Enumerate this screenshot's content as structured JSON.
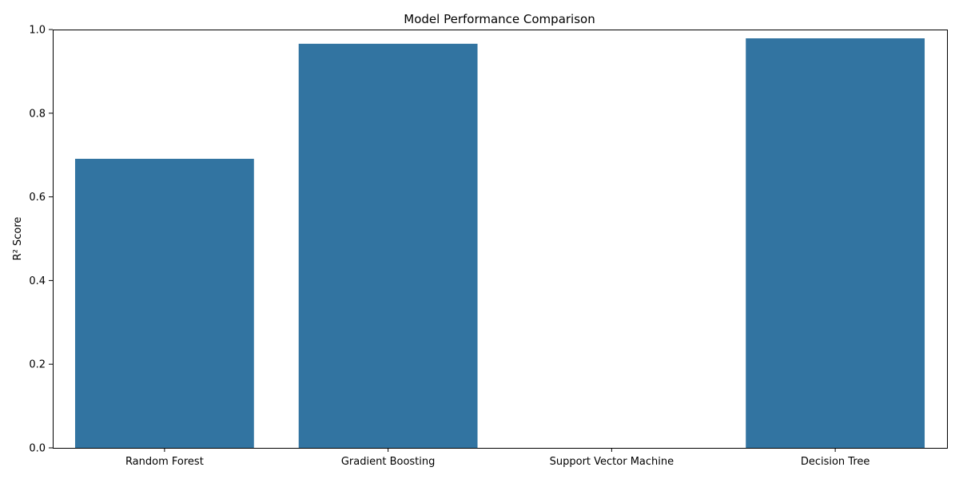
{
  "chart_data": {
    "type": "bar",
    "title": "Model Performance Comparison",
    "xlabel": "",
    "ylabel": "R² Score",
    "categories": [
      "Random Forest",
      "Gradient Boosting",
      "Support Vector Machine",
      "Decision Tree"
    ],
    "values": [
      0.691,
      0.966,
      0.0,
      0.979
    ],
    "ylim": [
      0,
      1.0
    ],
    "yticks": [
      "0.0",
      "0.2",
      "0.4",
      "0.6",
      "0.8",
      "1.0"
    ],
    "grid": false,
    "legend": "none",
    "bar_color": "#3274a1"
  }
}
